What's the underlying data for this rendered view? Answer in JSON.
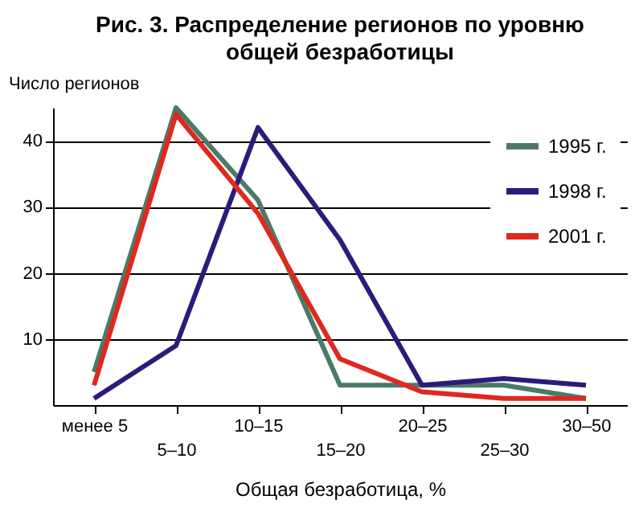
{
  "chart_data": {
    "type": "line",
    "title": "Рис. 3. Распределение регионов по уровню общей безработицы",
    "xlabel": "Общая безработица, %",
    "ylabel": "Число регионов",
    "categories": [
      "менее 5",
      "5–10",
      "10–15",
      "15–20",
      "20–25",
      "25–30",
      "30–50"
    ],
    "series": [
      {
        "name": "1995 г.",
        "color": "#4b7b68",
        "values": [
          5,
          45,
          31,
          3,
          3,
          3,
          1
        ]
      },
      {
        "name": "1998 г.",
        "color": "#2e1a7a",
        "values": [
          1,
          9,
          42,
          25,
          3,
          4,
          3
        ]
      },
      {
        "name": "2001 г.",
        "color": "#e0281e",
        "values": [
          3,
          44,
          29,
          7,
          2,
          1,
          1
        ]
      }
    ],
    "ylim": [
      0,
      45
    ],
    "yticks": [
      10,
      20,
      30,
      40
    ],
    "grid": "y",
    "legend": "top right"
  }
}
